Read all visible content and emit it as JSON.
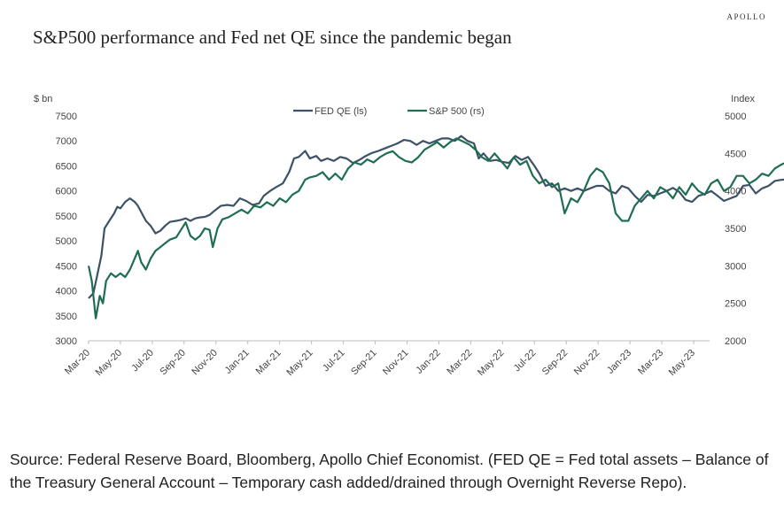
{
  "brand": "APOLLO",
  "chart_data": {
    "type": "line",
    "title": "S&P500 performance and Fed net QE since the pandemic began",
    "left_axis_label": "$ bn",
    "right_axis_label": "Index",
    "left_ylim": [
      3000,
      7500
    ],
    "left_ticks": [
      3000,
      3500,
      4000,
      4500,
      5000,
      5500,
      6000,
      6500,
      7000,
      7500
    ],
    "right_ylim": [
      2000,
      5000
    ],
    "right_ticks": [
      2000,
      2500,
      3000,
      3500,
      4000,
      4500,
      5000
    ],
    "x_ticks": [
      "Mar-20",
      "May-20",
      "Jul-20",
      "Sep-20",
      "Nov-20",
      "Jan-21",
      "Mar-21",
      "May-21",
      "Jul-21",
      "Sep-21",
      "Nov-21",
      "Jan-22",
      "Mar-22",
      "May-22",
      "Jul-22",
      "Sep-22",
      "Nov-22",
      "Jan-23",
      "Mar-23",
      "May-23"
    ],
    "legend_position": "top-center",
    "grid": false,
    "series": [
      {
        "name": "FED QE (ls)",
        "axis": "left",
        "color": "#3d5266",
        "points": [
          [
            0,
            3850
          ],
          [
            0.3,
            3950
          ],
          [
            0.6,
            4400
          ],
          [
            0.8,
            4700
          ],
          [
            1.0,
            5250
          ],
          [
            1.3,
            5400
          ],
          [
            1.6,
            5550
          ],
          [
            1.8,
            5680
          ],
          [
            2.0,
            5650
          ],
          [
            2.3,
            5780
          ],
          [
            2.6,
            5850
          ],
          [
            2.9,
            5780
          ],
          [
            3.1,
            5700
          ],
          [
            3.3,
            5580
          ],
          [
            3.6,
            5400
          ],
          [
            3.9,
            5300
          ],
          [
            4.2,
            5150
          ],
          [
            4.5,
            5200
          ],
          [
            4.8,
            5300
          ],
          [
            5.1,
            5380
          ],
          [
            5.5,
            5400
          ],
          [
            5.8,
            5420
          ],
          [
            6.1,
            5450
          ],
          [
            6.4,
            5400
          ],
          [
            6.7,
            5450
          ],
          [
            7.0,
            5470
          ],
          [
            7.3,
            5480
          ],
          [
            7.6,
            5520
          ],
          [
            7.9,
            5600
          ],
          [
            8.3,
            5700
          ],
          [
            8.7,
            5720
          ],
          [
            9.1,
            5700
          ],
          [
            9.5,
            5850
          ],
          [
            9.9,
            5800
          ],
          [
            10.3,
            5720
          ],
          [
            10.7,
            5750
          ],
          [
            11.0,
            5900
          ],
          [
            11.4,
            6000
          ],
          [
            11.8,
            6080
          ],
          [
            12.2,
            6150
          ],
          [
            12.6,
            6380
          ],
          [
            12.9,
            6650
          ],
          [
            13.2,
            6680
          ],
          [
            13.6,
            6800
          ],
          [
            13.9,
            6650
          ],
          [
            14.3,
            6700
          ],
          [
            14.6,
            6600
          ],
          [
            15.0,
            6650
          ],
          [
            15.4,
            6600
          ],
          [
            15.8,
            6680
          ],
          [
            16.2,
            6650
          ],
          [
            16.6,
            6560
          ],
          [
            17.0,
            6620
          ],
          [
            17.4,
            6700
          ],
          [
            17.8,
            6760
          ],
          [
            18.2,
            6800
          ],
          [
            18.6,
            6850
          ],
          [
            19.0,
            6900
          ],
          [
            19.4,
            6950
          ],
          [
            19.8,
            7020
          ],
          [
            20.2,
            7000
          ],
          [
            20.6,
            6920
          ],
          [
            21.0,
            7000
          ],
          [
            21.4,
            6950
          ],
          [
            21.8,
            7000
          ],
          [
            22.2,
            7050
          ],
          [
            22.6,
            7050
          ],
          [
            23.0,
            7000
          ],
          [
            23.4,
            7100
          ],
          [
            23.8,
            7000
          ],
          [
            24.2,
            6950
          ],
          [
            24.5,
            6650
          ],
          [
            24.8,
            6750
          ],
          [
            25.2,
            6600
          ],
          [
            25.6,
            6620
          ],
          [
            26.0,
            6580
          ],
          [
            26.4,
            6560
          ],
          [
            26.8,
            6700
          ],
          [
            27.2,
            6620
          ],
          [
            27.6,
            6680
          ],
          [
            28.0,
            6500
          ],
          [
            28.3,
            6350
          ],
          [
            28.7,
            6100
          ],
          [
            29.1,
            6150
          ],
          [
            29.5,
            6000
          ],
          [
            29.9,
            6050
          ],
          [
            30.3,
            6000
          ],
          [
            30.7,
            6050
          ],
          [
            31.1,
            6000
          ],
          [
            31.5,
            6050
          ],
          [
            31.9,
            6100
          ],
          [
            32.3,
            6100
          ],
          [
            32.7,
            6000
          ],
          [
            33.1,
            5950
          ],
          [
            33.5,
            6100
          ],
          [
            33.9,
            6050
          ],
          [
            34.3,
            5900
          ],
          [
            34.7,
            5780
          ],
          [
            35.1,
            5920
          ],
          [
            35.5,
            5900
          ],
          [
            35.9,
            5950
          ],
          [
            36.3,
            6000
          ],
          [
            36.7,
            6060
          ],
          [
            37.1,
            5980
          ],
          [
            37.5,
            5820
          ],
          [
            37.9,
            5780
          ],
          [
            38.3,
            5900
          ],
          [
            38.7,
            5940
          ],
          [
            39.1,
            6000
          ],
          [
            39.5,
            5900
          ],
          [
            39.9,
            5800
          ],
          [
            40.3,
            5850
          ],
          [
            40.7,
            5900
          ],
          [
            41.1,
            6100
          ],
          [
            41.5,
            6120
          ],
          [
            41.9,
            5950
          ],
          [
            42.3,
            6050
          ],
          [
            42.7,
            6100
          ],
          [
            43.1,
            6200
          ],
          [
            43.5,
            6220
          ],
          [
            43.8,
            6230
          ]
        ]
      },
      {
        "name": "S&P 500 (rs)",
        "axis": "right",
        "color": "#1f6e52",
        "points": [
          [
            0,
            3000
          ],
          [
            0.2,
            2800
          ],
          [
            0.45,
            2300
          ],
          [
            0.7,
            2600
          ],
          [
            0.9,
            2500
          ],
          [
            1.1,
            2800
          ],
          [
            1.4,
            2900
          ],
          [
            1.7,
            2850
          ],
          [
            2.0,
            2900
          ],
          [
            2.3,
            2850
          ],
          [
            2.6,
            2950
          ],
          [
            2.9,
            3100
          ],
          [
            3.1,
            3200
          ],
          [
            3.3,
            3050
          ],
          [
            3.6,
            2950
          ],
          [
            3.9,
            3100
          ],
          [
            4.2,
            3200
          ],
          [
            4.5,
            3250
          ],
          [
            4.8,
            3300
          ],
          [
            5.1,
            3350
          ],
          [
            5.5,
            3380
          ],
          [
            5.8,
            3480
          ],
          [
            6.1,
            3580
          ],
          [
            6.4,
            3400
          ],
          [
            6.7,
            3350
          ],
          [
            7.0,
            3400
          ],
          [
            7.3,
            3500
          ],
          [
            7.6,
            3480
          ],
          [
            7.8,
            3250
          ],
          [
            8.1,
            3500
          ],
          [
            8.4,
            3620
          ],
          [
            8.8,
            3650
          ],
          [
            9.2,
            3700
          ],
          [
            9.6,
            3750
          ],
          [
            10.0,
            3700
          ],
          [
            10.4,
            3800
          ],
          [
            10.8,
            3780
          ],
          [
            11.2,
            3850
          ],
          [
            11.6,
            3800
          ],
          [
            12.0,
            3900
          ],
          [
            12.4,
            3850
          ],
          [
            12.8,
            3950
          ],
          [
            13.2,
            4000
          ],
          [
            13.6,
            4150
          ],
          [
            13.9,
            4180
          ],
          [
            14.3,
            4200
          ],
          [
            14.7,
            4250
          ],
          [
            15.1,
            4150
          ],
          [
            15.5,
            4230
          ],
          [
            15.9,
            4150
          ],
          [
            16.3,
            4300
          ],
          [
            16.7,
            4380
          ],
          [
            17.1,
            4350
          ],
          [
            17.5,
            4420
          ],
          [
            17.9,
            4380
          ],
          [
            18.3,
            4450
          ],
          [
            18.7,
            4500
          ],
          [
            19.1,
            4530
          ],
          [
            19.5,
            4450
          ],
          [
            19.9,
            4400
          ],
          [
            20.3,
            4380
          ],
          [
            20.7,
            4450
          ],
          [
            21.1,
            4550
          ],
          [
            21.5,
            4600
          ],
          [
            21.9,
            4650
          ],
          [
            22.3,
            4580
          ],
          [
            22.7,
            4650
          ],
          [
            23.1,
            4700
          ],
          [
            23.5,
            4660
          ],
          [
            23.9,
            4620
          ],
          [
            24.3,
            4550
          ],
          [
            24.7,
            4450
          ],
          [
            25.1,
            4400
          ],
          [
            25.5,
            4500
          ],
          [
            25.9,
            4400
          ],
          [
            26.3,
            4300
          ],
          [
            26.7,
            4450
          ],
          [
            27.1,
            4350
          ],
          [
            27.5,
            4400
          ],
          [
            27.9,
            4200
          ],
          [
            28.3,
            4100
          ],
          [
            28.7,
            4150
          ],
          [
            29.1,
            4050
          ],
          [
            29.5,
            4100
          ],
          [
            29.9,
            3700
          ],
          [
            30.3,
            3900
          ],
          [
            30.7,
            3850
          ],
          [
            31.1,
            4000
          ],
          [
            31.5,
            4200
          ],
          [
            31.9,
            4300
          ],
          [
            32.3,
            4250
          ],
          [
            32.7,
            4100
          ],
          [
            33.1,
            3700
          ],
          [
            33.5,
            3600
          ],
          [
            33.9,
            3600
          ],
          [
            34.3,
            3800
          ],
          [
            34.7,
            3900
          ],
          [
            35.1,
            4000
          ],
          [
            35.5,
            3900
          ],
          [
            35.9,
            4050
          ],
          [
            36.3,
            4000
          ],
          [
            36.7,
            3900
          ],
          [
            37.1,
            4050
          ],
          [
            37.5,
            3950
          ],
          [
            37.9,
            4100
          ],
          [
            38.3,
            4000
          ],
          [
            38.7,
            3950
          ],
          [
            39.1,
            4100
          ],
          [
            39.5,
            4150
          ],
          [
            39.9,
            4000
          ],
          [
            40.3,
            4050
          ],
          [
            40.7,
            4200
          ],
          [
            41.1,
            4200
          ],
          [
            41.5,
            4100
          ],
          [
            41.9,
            4150
          ],
          [
            42.3,
            4230
          ],
          [
            42.7,
            4200
          ],
          [
            43.1,
            4300
          ],
          [
            43.5,
            4350
          ],
          [
            43.8,
            4380
          ]
        ]
      }
    ]
  },
  "source_note": "Source: Federal Reserve Board, Bloomberg, Apollo Chief Economist. (FED QE = Fed total assets – Balance of the Treasury General Account – Temporary cash added/drained through Overnight Reverse Repo)."
}
